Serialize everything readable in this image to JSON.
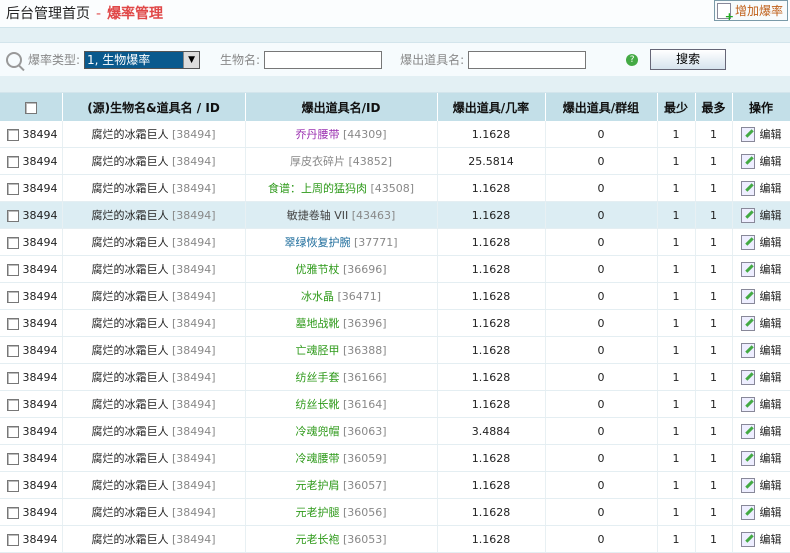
{
  "header": {
    "home": "后台管理首页",
    "separator": "-",
    "current": "爆率管理",
    "add_button": "增加爆率"
  },
  "search": {
    "type_label": "爆率类型:",
    "type_value": "1, 生物爆率",
    "creature_label": "生物名:",
    "creature_value": "",
    "item_label": "爆出道具名:",
    "item_value": "",
    "help": "?",
    "search_button": "搜索"
  },
  "table": {
    "columns": [
      "",
      "(源)生物名&道具名 / ID",
      "爆出道具名/ID",
      "爆出道具/几率",
      "爆出道具/群组",
      "最少",
      "最多",
      "操作"
    ],
    "edit_label": "编辑",
    "rows": [
      {
        "id": "38494",
        "source": "腐烂的冰霜巨人",
        "source_id": "[38494]",
        "item": "乔丹腰带",
        "item_id": "[44309]",
        "color": "#9a2fb0",
        "rate": "1.1628",
        "group": "0",
        "min": "1",
        "max": "1"
      },
      {
        "id": "38494",
        "source": "腐烂的冰霜巨人",
        "source_id": "[38494]",
        "item": "厚皮衣碎片",
        "item_id": "[43852]",
        "color": "#888888",
        "rate": "25.5814",
        "group": "0",
        "min": "1",
        "max": "1"
      },
      {
        "id": "38494",
        "source": "腐烂的冰霜巨人",
        "source_id": "[38494]",
        "item": "食谱：上周的猛犸肉",
        "item_id": "[43508]",
        "color": "#2e9a1a",
        "rate": "1.1628",
        "group": "0",
        "min": "1",
        "max": "1"
      },
      {
        "id": "38494",
        "source": "腐烂的冰霜巨人",
        "source_id": "[38494]",
        "item": "敏捷卷轴 VII",
        "item_id": "[43463]",
        "color": "#444444",
        "rate": "1.1628",
        "group": "0",
        "min": "1",
        "max": "1",
        "highlight": true
      },
      {
        "id": "38494",
        "source": "腐烂的冰霜巨人",
        "source_id": "[38494]",
        "item": "翠绿恢复护腕",
        "item_id": "[37771]",
        "color": "#1a6a9a",
        "rate": "1.1628",
        "group": "0",
        "min": "1",
        "max": "1"
      },
      {
        "id": "38494",
        "source": "腐烂的冰霜巨人",
        "source_id": "[38494]",
        "item": "优雅节杖",
        "item_id": "[36696]",
        "color": "#2e9a1a",
        "rate": "1.1628",
        "group": "0",
        "min": "1",
        "max": "1"
      },
      {
        "id": "38494",
        "source": "腐烂的冰霜巨人",
        "source_id": "[38494]",
        "item": "冰水晶",
        "item_id": "[36471]",
        "color": "#2e9a1a",
        "rate": "1.1628",
        "group": "0",
        "min": "1",
        "max": "1"
      },
      {
        "id": "38494",
        "source": "腐烂的冰霜巨人",
        "source_id": "[38494]",
        "item": "墓地战靴",
        "item_id": "[36396]",
        "color": "#2e9a1a",
        "rate": "1.1628",
        "group": "0",
        "min": "1",
        "max": "1"
      },
      {
        "id": "38494",
        "source": "腐烂的冰霜巨人",
        "source_id": "[38494]",
        "item": "亡魂胫甲",
        "item_id": "[36388]",
        "color": "#2e9a1a",
        "rate": "1.1628",
        "group": "0",
        "min": "1",
        "max": "1"
      },
      {
        "id": "38494",
        "source": "腐烂的冰霜巨人",
        "source_id": "[38494]",
        "item": "纺丝手套",
        "item_id": "[36166]",
        "color": "#2e9a1a",
        "rate": "1.1628",
        "group": "0",
        "min": "1",
        "max": "1"
      },
      {
        "id": "38494",
        "source": "腐烂的冰霜巨人",
        "source_id": "[38494]",
        "item": "纺丝长靴",
        "item_id": "[36164]",
        "color": "#2e9a1a",
        "rate": "1.1628",
        "group": "0",
        "min": "1",
        "max": "1"
      },
      {
        "id": "38494",
        "source": "腐烂的冰霜巨人",
        "source_id": "[38494]",
        "item": "冷魂兜帽",
        "item_id": "[36063]",
        "color": "#2e9a1a",
        "rate": "3.4884",
        "group": "0",
        "min": "1",
        "max": "1"
      },
      {
        "id": "38494",
        "source": "腐烂的冰霜巨人",
        "source_id": "[38494]",
        "item": "冷魂腰带",
        "item_id": "[36059]",
        "color": "#2e9a1a",
        "rate": "1.1628",
        "group": "0",
        "min": "1",
        "max": "1"
      },
      {
        "id": "38494",
        "source": "腐烂的冰霜巨人",
        "source_id": "[38494]",
        "item": "元老护肩",
        "item_id": "[36057]",
        "color": "#2e9a1a",
        "rate": "1.1628",
        "group": "0",
        "min": "1",
        "max": "1"
      },
      {
        "id": "38494",
        "source": "腐烂的冰霜巨人",
        "source_id": "[38494]",
        "item": "元老护腿",
        "item_id": "[36056]",
        "color": "#2e9a1a",
        "rate": "1.1628",
        "group": "0",
        "min": "1",
        "max": "1"
      },
      {
        "id": "38494",
        "source": "腐烂的冰霜巨人",
        "source_id": "[38494]",
        "item": "元老长袍",
        "item_id": "[36053]",
        "color": "#2e9a1a",
        "rate": "1.1628",
        "group": "0",
        "min": "1",
        "max": "1"
      }
    ]
  }
}
